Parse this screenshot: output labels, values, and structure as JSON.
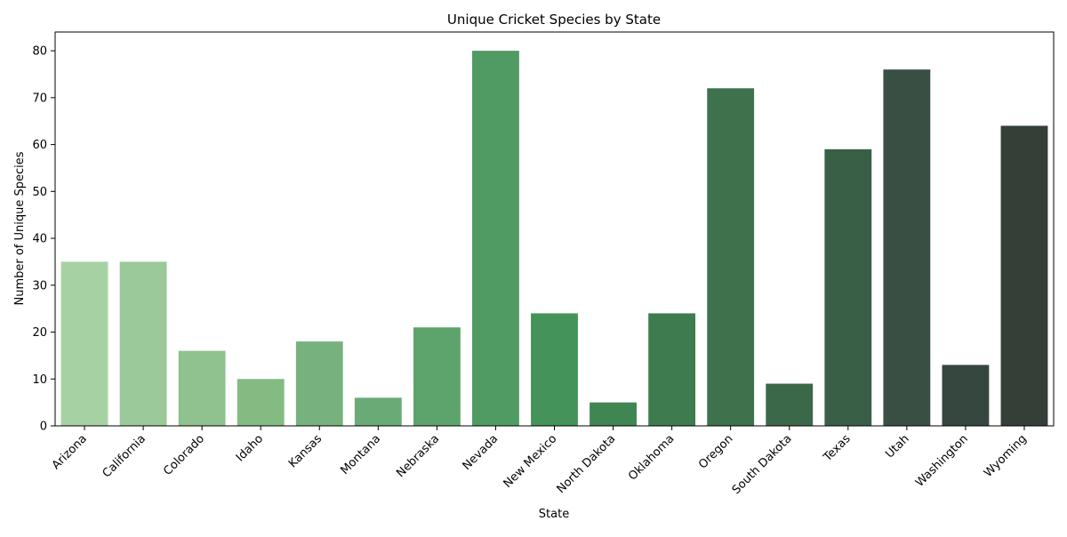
{
  "chart_data": {
    "type": "bar",
    "title": "Unique Cricket Species by State",
    "xlabel": "State",
    "ylabel": "Number of Unique Species",
    "ylim": [
      0,
      84
    ],
    "yticks": [
      0,
      10,
      20,
      30,
      40,
      50,
      60,
      70,
      80
    ],
    "grid": false,
    "legend": "none",
    "categories": [
      "Arizona",
      "California",
      "Colorado",
      "Idaho",
      "Kansas",
      "Montana",
      "Nebraska",
      "Nevada",
      "New Mexico",
      "North Dakota",
      "Oklahoma",
      "Oregon",
      "South Dakota",
      "Texas",
      "Utah",
      "Washington",
      "Wyoming"
    ],
    "values": [
      35,
      35,
      16,
      10,
      18,
      6,
      21,
      80,
      24,
      5,
      24,
      72,
      9,
      59,
      76,
      13,
      64
    ],
    "colors": [
      "#a6d1a3",
      "#9bc999",
      "#8fc28e",
      "#83bb83",
      "#77b27e",
      "#6aaa77",
      "#5da36c",
      "#509b64",
      "#44935a",
      "#3f8653",
      "#3e7c50",
      "#3d724d",
      "#3c684a",
      "#3a5f47",
      "#394f44",
      "#36473f",
      "#333f37"
    ]
  }
}
